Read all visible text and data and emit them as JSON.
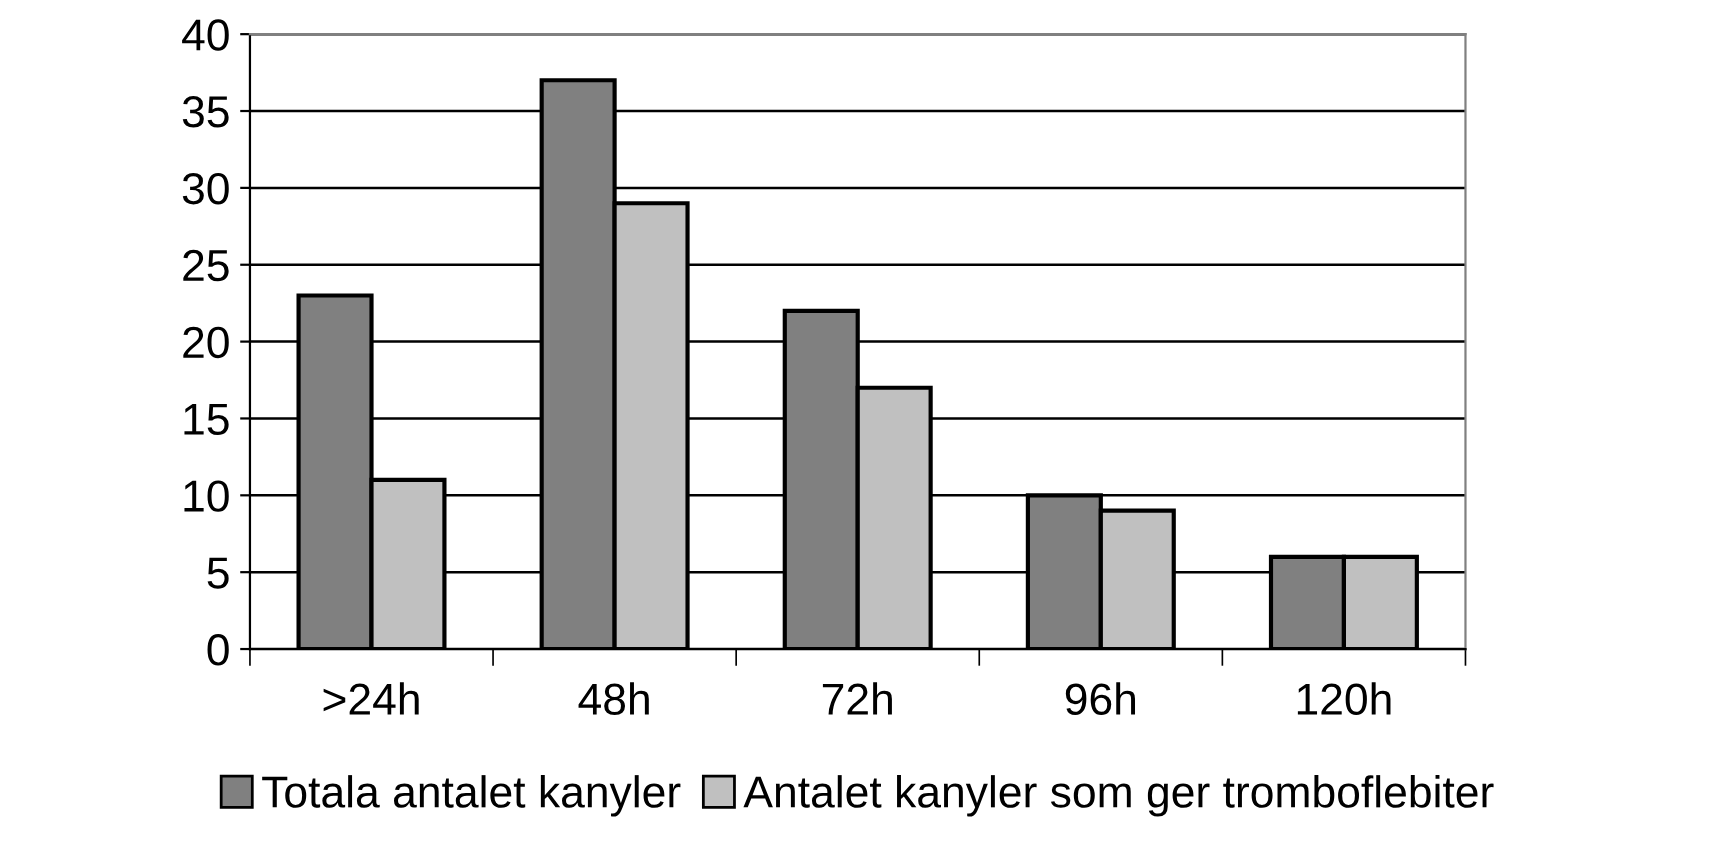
{
  "chart_data": {
    "type": "bar",
    "categories": [
      ">24h",
      "48h",
      "72h",
      "96h",
      "120h"
    ],
    "series": [
      {
        "name": "Totala antalet kanyler",
        "color": "#808080",
        "values": [
          23,
          37,
          22,
          10,
          6
        ]
      },
      {
        "name": "Antalet kanyler som ger tromboflebiter",
        "color": "#c0c0c0",
        "values": [
          11,
          29,
          17,
          9,
          6
        ]
      }
    ],
    "ylim": [
      0,
      40
    ],
    "yticks": [
      0,
      5,
      10,
      15,
      20,
      25,
      30,
      35,
      40
    ],
    "grid": "y",
    "legend": "bottom"
  }
}
